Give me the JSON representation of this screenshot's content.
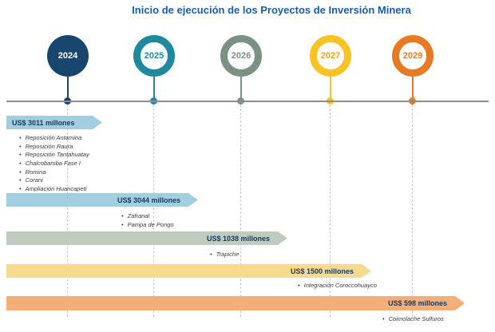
{
  "title": "Inicio de ejecución de los Proyectos de Inversión Minera",
  "chart_data": {
    "type": "bar",
    "subtype": "horizontal-timeline-infographic",
    "title": "Inicio de ejecución de los Proyectos de Inversión Minera",
    "categories": [
      "2024",
      "2025",
      "2026",
      "2027",
      "2029"
    ],
    "values": [
      3011,
      3044,
      1038,
      1500,
      598
    ],
    "unit": "US$ millones",
    "value_labels": [
      "US$ 3011 millones",
      "US$ 3044 millones",
      "US$ 1038 millones",
      "US$ 1500 millones",
      "US$ 598 millones"
    ],
    "legend_position": "none",
    "grid": "dashed-vertical",
    "annotations": [
      {
        "year": "2024",
        "projects": [
          "Reposición Antamina",
          "Reposición Raura",
          "Reposición Tantahuatay",
          "Chalcobamba Fase I",
          "Romina",
          "Corani",
          "Ampliación Huancapetí"
        ]
      },
      {
        "year": "2025",
        "projects": [
          "Zafranal",
          "Pampa de Pongo"
        ]
      },
      {
        "year": "2026",
        "projects": [
          "Trapiche"
        ]
      },
      {
        "year": "2027",
        "projects": [
          "Integración Coroccohuayco"
        ]
      },
      {
        "year": "2029",
        "projects": [
          "Coimolache Sulfuros"
        ]
      }
    ]
  },
  "years": [
    {
      "label": "2024",
      "color": "#17456E"
    },
    {
      "label": "2025",
      "color": "#1F8A9E"
    },
    {
      "label": "2026",
      "color": "#7A9183"
    },
    {
      "label": "2027",
      "color": "#F7C325"
    },
    {
      "label": "2029",
      "color": "#E87A24"
    }
  ],
  "phases": [
    {
      "year": "2024",
      "amount": "US$ 3011 millones",
      "bar_color": "#A3CEDF",
      "projects": [
        "Reposición Antamina",
        "Reposición Raura",
        "Reposición Tantahuatay",
        "Chalcobamba Fase I",
        "Romina",
        "Corani",
        "Ampliación Huancapetí"
      ]
    },
    {
      "year": "2025",
      "amount": "US$ 3044 millones",
      "bar_color": "#A3CEDF",
      "projects": [
        "Zafranal",
        "Pampa de Pongo"
      ]
    },
    {
      "year": "2026",
      "amount": "US$ 1038 millones",
      "bar_color": "#BFCBBE",
      "projects": [
        "Trapiche"
      ]
    },
    {
      "year": "2027",
      "amount": "US$ 1500 millones",
      "bar_color": "#F8DA8C",
      "projects": [
        "Integración Coroccohuayco"
      ]
    },
    {
      "year": "2029",
      "amount": "US$ 598 millones",
      "bar_color": "#F3AE7A",
      "projects": [
        "Coimolache Sulfuros"
      ]
    }
  ]
}
